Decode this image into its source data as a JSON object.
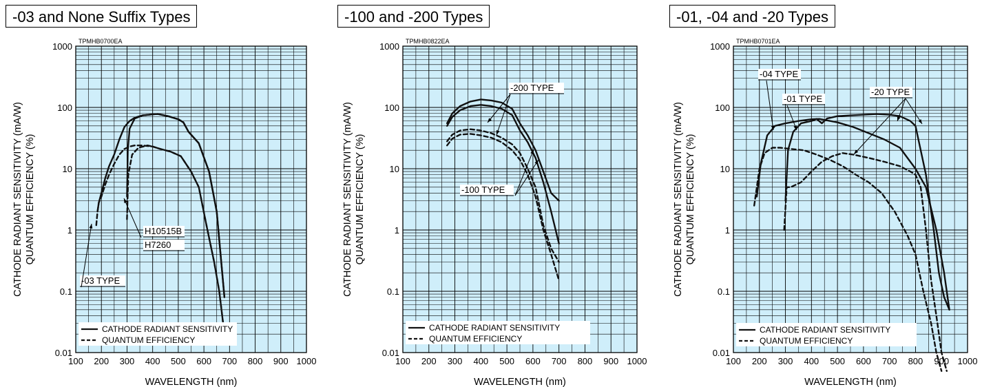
{
  "panels": [
    {
      "title": "-03 and None Suffix Types",
      "code": "TPMHB0700EA",
      "chart_data": {
        "type": "line",
        "xlabel": "WAVELENGTH (nm)",
        "ylabel": "CATHODE RADIANT SENSITIVITY (mA/W)",
        "ylabel2": "QUANTUM EFFICIENCY (%)",
        "x_ticks": [
          "100",
          "200",
          "300",
          "400",
          "500",
          "600",
          "700",
          "800",
          "900",
          "1000"
        ],
        "y_ticks": [
          "0.01",
          "0.1",
          "1",
          "10",
          "100",
          "1000"
        ],
        "xlim": [
          100,
          1000
        ],
        "ylim": [
          0.01,
          1000
        ],
        "yscale": "log",
        "grid": true,
        "legend": [
          "CATHODE RADIANT SENSITIVITY",
          "QUANTUM EFFICIENCY"
        ],
        "legend_position": "bottom-left",
        "annotations": [
          "H10515B",
          "H7260",
          "-03 TYPE"
        ],
        "series": [
          {
            "style": "solid",
            "x": [
              185,
              190,
              200,
              215,
              230,
              250,
              270,
              290,
              310,
              330,
              360,
              400,
              420,
              460,
              500,
              520,
              540,
              580,
              620,
              650,
              680
            ],
            "y": [
              2,
              2.8,
              4,
              7,
              11,
              17,
              30,
              48,
              60,
              68,
              74,
              77,
              78,
              72,
              64,
              57,
              40,
              26,
              9,
              2,
              0.08
            ]
          },
          {
            "style": "solid",
            "x": [
              300,
              303,
              310,
              330,
              360,
              400,
              420,
              460,
              500,
              520,
              540,
              580,
              620,
              650,
              680
            ],
            "y": [
              3.5,
              20,
              45,
              66,
              74,
              77,
              78,
              72,
              64,
              57,
              40,
              26,
              9,
              2,
              0.08
            ]
          },
          {
            "style": "dashed",
            "x": [
              180,
              185,
              190,
              200,
              215,
              230,
              250,
              270,
              290,
              310,
              330,
              360,
              400,
              430,
              470,
              510,
              550,
              580,
              610,
              640,
              660,
              675,
              680
            ],
            "y": [
              1.2,
              2,
              2.8,
              3.5,
              5.5,
              8,
              12,
              17,
              21,
              23,
              24,
              24,
              23,
              21,
              19,
              16,
              9,
              5,
              1.2,
              0.3,
              0.1,
              0.03,
              0.015
            ]
          },
          {
            "style": "dashed",
            "x": [
              300,
              305,
              320,
              345,
              380,
              400,
              430,
              470,
              510,
              550,
              580,
              610,
              640,
              660,
              675,
              680
            ],
            "y": [
              1.5,
              8,
              17,
              22,
              24,
              23,
              21,
              19,
              16,
              9,
              5,
              1.2,
              0.3,
              0.1,
              0.03,
              0.015
            ]
          }
        ]
      }
    },
    {
      "title": "-100 and -200 Types",
      "code": "TPMHB0822EA",
      "chart_data": {
        "type": "line",
        "xlabel": "WAVELENGTH (nm)",
        "ylabel": "CATHODE RADIANT SENSITIVITY (mA/W)",
        "ylabel2": "QUANTUM EFFICIENCY (%)",
        "x_ticks": [
          "100",
          "200",
          "300",
          "400",
          "500",
          "600",
          "700",
          "800",
          "900",
          "1000"
        ],
        "y_ticks": [
          "0.01",
          "0.1",
          "1",
          "10",
          "100",
          "1000"
        ],
        "xlim": [
          100,
          1000
        ],
        "ylim": [
          0.01,
          1000
        ],
        "yscale": "log",
        "grid": true,
        "legend": [
          "CATHODE RADIANT SENSITIVITY",
          "QUANTUM EFFICIENCY"
        ],
        "legend_position": "bottom-left",
        "annotations": [
          "-200 TYPE",
          "-100 TYPE"
        ],
        "series": [
          {
            "style": "solid",
            "x": [
              270,
              290,
              320,
              360,
              400,
              440,
              480,
              520,
              550,
              580,
              610,
              640,
              670,
              700
            ],
            "y": [
              55,
              80,
              105,
              125,
              135,
              130,
              120,
              95,
              55,
              35,
              20,
              9,
              4,
              3
            ]
          },
          {
            "style": "solid",
            "x": [
              270,
              290,
              320,
              360,
              400,
              440,
              480,
              520,
              550,
              580,
              610,
              640,
              670,
              700
            ],
            "y": [
              50,
              70,
              90,
              105,
              110,
              105,
              95,
              75,
              42,
              27,
              15,
              6,
              2,
              0.6
            ]
          },
          {
            "style": "dashed",
            "x": [
              270,
              290,
              320,
              360,
              400,
              440,
              480,
              520,
              550,
              580,
              610,
              640,
              670,
              700
            ],
            "y": [
              28,
              36,
              42,
              44,
              42,
              38,
              32,
              25,
              18,
              10,
              5,
              1.2,
              0.5,
              0.3
            ]
          },
          {
            "style": "dashed",
            "x": [
              270,
              290,
              320,
              360,
              400,
              440,
              480,
              520,
              550,
              580,
              610,
              640,
              670,
              700
            ],
            "y": [
              24,
              31,
              36,
              37,
              35,
              32,
              27,
              20,
              14,
              8,
              3.5,
              1,
              0.4,
              0.15
            ]
          }
        ]
      }
    },
    {
      "title": "-01, -04 and -20 Types",
      "code": "TPMHB0701EA",
      "chart_data": {
        "type": "line",
        "xlabel": "WAVELENGTH (nm)",
        "ylabel": "CATHODE RADIANT SENSITIVITY (mA/W)",
        "ylabel2": "QUANTUM EFFICIENCY (%)",
        "x_ticks": [
          "100",
          "200",
          "300",
          "400",
          "500",
          "600",
          "700",
          "800",
          "900",
          "1000"
        ],
        "y_ticks": [
          "0.01",
          "0.1",
          "1",
          "10",
          "100",
          "1000"
        ],
        "xlim": [
          100,
          1000
        ],
        "ylim": [
          0.01,
          1000
        ],
        "yscale": "log",
        "grid": true,
        "legend": [
          "CATHODE RADIANT SENSITIVITY",
          "QUANTUM EFFICIENCY"
        ],
        "legend_position": "bottom-left",
        "annotations": [
          "-04 TYPE",
          "-01 TYPE",
          "-20 TYPE"
        ],
        "series": [
          {
            "style": "solid",
            "x": [
              190,
              205,
              230,
              260,
              300,
              350,
              400,
              430,
              500,
              560,
              620,
              680,
              740,
              800,
              840,
              880,
              910,
              930
            ],
            "y": [
              3.5,
              12,
              35,
              50,
              55,
              60,
              64,
              65,
              57,
              48,
              38,
              30,
              22,
              10,
              5,
              1,
              0.2,
              0.05
            ]
          },
          {
            "style": "solid",
            "x": [
              300,
              310,
              330,
              360,
              400,
              420,
              440,
              460,
              500,
              550,
              600,
              650,
              700,
              740,
              780,
              800,
              840,
              870,
              890,
              910,
              930
            ],
            "y": [
              3,
              20,
              40,
              55,
              60,
              65,
              55,
              66,
              72,
              74,
              76,
              78,
              76,
              72,
              60,
              50,
              8,
              1,
              0.2,
              0.08,
              0.05
            ]
          },
          {
            "style": "dashed",
            "x": [
              180,
              190,
              200,
              220,
              250,
              280,
              320,
              370,
              420,
              470,
              520,
              570,
              620,
              670,
              720,
              770,
              800,
              830,
              860,
              880,
              900
            ],
            "y": [
              2.5,
              5,
              10,
              18,
              22,
              22,
              21,
              20,
              17,
              14,
              11,
              8,
              6,
              4,
              2,
              0.8,
              0.4,
              0.1,
              0.03,
              0.01,
              0.005
            ]
          },
          {
            "style": "dashed",
            "x": [
              295,
              305,
              320,
              360,
              400,
              440,
              480,
              520,
              560,
              620,
              680,
              740,
              780,
              800,
              820,
              840,
              860,
              880,
              900,
              920
            ],
            "y": [
              1,
              5,
              5,
              6,
              9,
              13,
              16,
              18,
              17,
              15,
              13,
              11,
              9,
              8,
              5,
              1,
              0.15,
              0.04,
              0.01,
              0.005
            ]
          }
        ]
      }
    }
  ]
}
